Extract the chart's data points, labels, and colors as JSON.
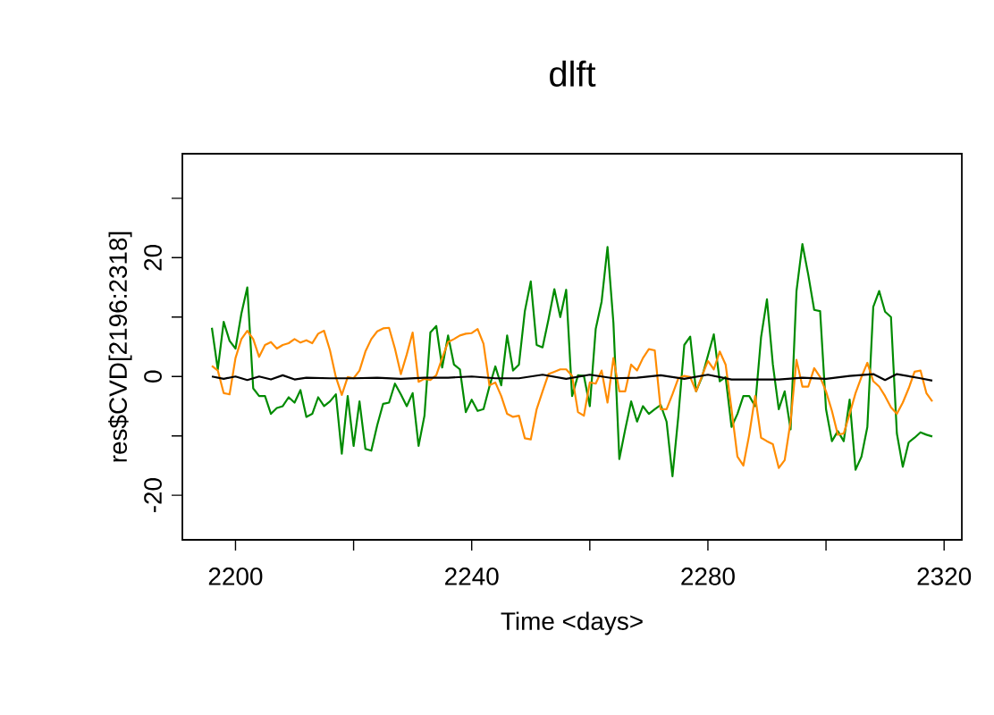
{
  "chart_data": {
    "type": "line",
    "title": "dlft",
    "xlabel": "Time <days>",
    "ylabel": "res$CVD[2196:2318]",
    "xlim": [
      2191,
      2323
    ],
    "ylim": [
      -27.5,
      37.5
    ],
    "xticks": [
      2200,
      {
        "value": 2220,
        "label": null
      },
      2240,
      {
        "value": 2260,
        "label": null
      },
      2280,
      {
        "value": 2300,
        "label": null
      },
      2320
    ],
    "yticks": [
      -20,
      {
        "value": -10,
        "label": null
      },
      0,
      {
        "value": 10,
        "label": null
      },
      20,
      {
        "value": 30,
        "label": null
      }
    ],
    "series": [
      {
        "color": "#008b00",
        "x": [
          2196,
          2197,
          2198,
          2199,
          2200,
          2201,
          2202,
          2203,
          2204,
          2205,
          2206,
          2207,
          2208,
          2209,
          2210,
          2211,
          2212,
          2213,
          2214,
          2215,
          2216,
          2217,
          2218,
          2219,
          2220,
          2221,
          2222,
          2223,
          2224,
          2225,
          2226,
          2227,
          2228,
          2229,
          2230,
          2231,
          2232,
          2233,
          2234,
          2235,
          2236,
          2237,
          2238,
          2239,
          2240,
          2241,
          2242,
          2243,
          2244,
          2245,
          2246,
          2247,
          2248,
          2249,
          2250,
          2251,
          2252,
          2253,
          2254,
          2255,
          2256,
          2257,
          2258,
          2259,
          2260,
          2261,
          2262,
          2263,
          2264,
          2265,
          2266,
          2267,
          2268,
          2269,
          2270,
          2271,
          2272,
          2273,
          2274,
          2275,
          2276,
          2277,
          2278,
          2279,
          2281,
          2282,
          2283,
          2284,
          2285,
          2286,
          2287,
          2288,
          2289,
          2290,
          2291,
          2292,
          2293,
          2294,
          2295,
          2296,
          2297,
          2298,
          2299,
          2300,
          2301,
          2302,
          2303,
          2304,
          2305,
          2306,
          2307,
          2308,
          2309,
          2310,
          2311,
          2312,
          2313,
          2314,
          2315,
          2316,
          2317,
          2318
        ],
        "values": [
          8.2,
          1.2,
          9.2,
          6,
          4.7,
          10.6,
          15,
          -2,
          -3.3,
          -3.3,
          -6.3,
          -5.3,
          -5,
          -3.5,
          -4.4,
          -2.3,
          -6.8,
          -6.3,
          -3.5,
          -5,
          -4.2,
          -3,
          -13,
          -3.3,
          -11.7,
          -4.2,
          -12.2,
          -12.5,
          -8.2,
          -4.6,
          -4.4,
          -1.2,
          -3,
          -5,
          -2.8,
          -11.7,
          -6.6,
          7.4,
          8.5,
          1.5,
          6.9,
          2,
          1.2,
          -6,
          -3.9,
          -5.8,
          -5.5,
          -1.7,
          1.7,
          -1.5,
          6.9,
          1,
          2,
          11,
          16,
          5.3,
          4.9,
          9.6,
          14.7,
          10,
          14.6,
          -3.3,
          0.2,
          0.1,
          -5,
          8,
          12.6,
          21.8,
          9,
          -13.9,
          -8.9,
          -4.2,
          -7.6,
          -5,
          -6.3,
          -5.5,
          -4.8,
          -7.6,
          -16.8,
          -6.6,
          5.3,
          6.7,
          -2.5,
          -0.1,
          7.1,
          -0.8,
          -0.1,
          -8.5,
          -6.3,
          -3.3,
          -3.3,
          -5,
          6.6,
          13,
          2,
          -5.5,
          -2.5,
          -8.9,
          14.4,
          22.3,
          17.1,
          11.2,
          11,
          -5.5,
          -10.9,
          -9.2,
          -10.9,
          -3.9,
          -15.7,
          -13.5,
          -8.5,
          11.7,
          14.4,
          10.9,
          10,
          -9.6,
          -15.2,
          -11.1,
          -10.3,
          -9.4,
          -9.8,
          -10.1
        ]
      },
      {
        "color": "#ff8c00",
        "x": [
          2196,
          2197,
          2198,
          2199,
          2200,
          2201,
          2202,
          2203,
          2204,
          2205,
          2206,
          2207,
          2208,
          2209,
          2210,
          2211,
          2212,
          2213,
          2214,
          2215,
          2216,
          2217,
          2218,
          2219,
          2220,
          2221,
          2222,
          2223,
          2224,
          2225,
          2226,
          2227,
          2228,
          2229,
          2230,
          2231,
          2232,
          2233,
          2234,
          2235,
          2236,
          2237,
          2238,
          2239,
          2240,
          2241,
          2242,
          2243,
          2244,
          2245,
          2246,
          2247,
          2248,
          2249,
          2250,
          2251,
          2252,
          2253,
          2254,
          2255,
          2256,
          2257,
          2258,
          2259,
          2260,
          2261,
          2262,
          2263,
          2264,
          2265,
          2266,
          2267,
          2268,
          2269,
          2270,
          2271,
          2272,
          2273,
          2274,
          2275,
          2276,
          2277,
          2278,
          2279,
          2280,
          2281,
          2282,
          2283,
          2284,
          2285,
          2286,
          2287,
          2288,
          2289,
          2290,
          2291,
          2292,
          2293,
          2294,
          2295,
          2296,
          2297,
          2298,
          2299,
          2300,
          2301,
          2302,
          2303,
          2304,
          2305,
          2306,
          2307,
          2308,
          2309,
          2310,
          2311,
          2312,
          2313,
          2314,
          2315,
          2316,
          2317,
          2318
        ],
        "values": [
          1.8,
          1,
          -2.8,
          -3,
          3.1,
          6.3,
          7.7,
          6.3,
          3.3,
          5.3,
          5.8,
          4.7,
          5.3,
          5.6,
          6.3,
          5.7,
          6.1,
          5.6,
          7.2,
          7.7,
          4.4,
          -0.1,
          -3.1,
          -0.1,
          -0.3,
          1,
          4.2,
          6.3,
          7.6,
          8.1,
          8.2,
          4.7,
          0.4,
          3.7,
          7.4,
          -0.9,
          -0.4,
          -0.6,
          0.2,
          3.1,
          5.8,
          6.3,
          6.9,
          7.2,
          7.3,
          8,
          5.5,
          -1.5,
          -1,
          -3.3,
          -6.3,
          -6.8,
          -6.6,
          -10.4,
          -10.6,
          -5.5,
          -2.5,
          0.4,
          0.8,
          1.2,
          1.2,
          0.1,
          -6,
          -6.6,
          -1,
          -1.2,
          1,
          -4.4,
          3.1,
          -2.5,
          -2.5,
          2,
          1,
          3.1,
          4.6,
          4.4,
          -5.5,
          -5.5,
          -3,
          -0.3,
          0.1,
          -0.1,
          -2.5,
          0.1,
          2.6,
          1.2,
          4.2,
          2,
          -5.5,
          -13.5,
          -15,
          -9.8,
          -3.3,
          -10.3,
          -10.9,
          -11.4,
          -15.4,
          -14.1,
          -7.6,
          2.8,
          -1.7,
          -1.7,
          1.4,
          -0.1,
          -2.5,
          -5.8,
          -9.8,
          -9.6,
          -6.3,
          -2.8,
          -0.1,
          2.3,
          -0.8,
          -1.7,
          -3.3,
          -5.2,
          -6.3,
          -4.4,
          -2,
          0.8,
          1,
          -2.8,
          -4.2
        ]
      },
      {
        "color": "#000000",
        "x": [
          2196,
          2198,
          2200,
          2202,
          2204,
          2206,
          2208,
          2210,
          2212,
          2216,
          2220,
          2224,
          2228,
          2232,
          2236,
          2240,
          2244,
          2248,
          2252,
          2256,
          2260,
          2264,
          2268,
          2272,
          2276,
          2280,
          2284,
          2288,
          2292,
          2296,
          2300,
          2304,
          2308,
          2310,
          2312,
          2316,
          2318
        ],
        "values": [
          0,
          -0.4,
          0,
          -0.6,
          0,
          -0.5,
          0.2,
          -0.5,
          -0.2,
          -0.3,
          -0.3,
          -0.2,
          -0.4,
          -0.2,
          -0.2,
          0,
          -0.3,
          -0.3,
          0.3,
          -0.4,
          0.3,
          -0.3,
          -0.2,
          0.2,
          -0.4,
          0.3,
          -0.5,
          -0.5,
          -0.5,
          -0.2,
          -0.4,
          0.1,
          0.4,
          -0.6,
          0.4,
          -0.3,
          -0.7
        ]
      }
    ]
  }
}
